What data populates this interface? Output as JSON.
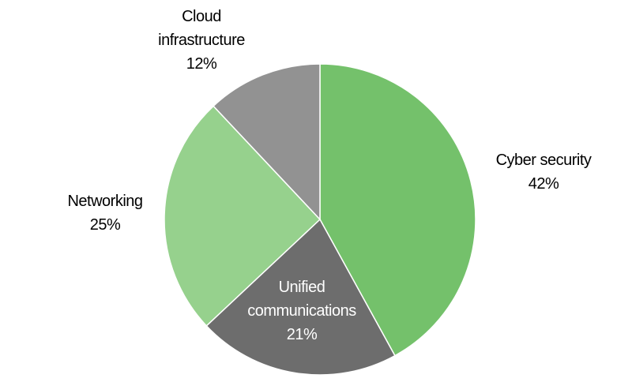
{
  "chart_data": {
    "type": "pie",
    "categories": [
      "Cyber security",
      "Unified communications",
      "Networking",
      "Cloud infrastructure"
    ],
    "values": [
      42,
      21,
      25,
      12
    ],
    "value_labels": [
      "42%",
      "21%",
      "25%",
      "12%"
    ],
    "colors": [
      "#74c16b",
      "#6d6d6d",
      "#96d18d",
      "#929292"
    ]
  }
}
